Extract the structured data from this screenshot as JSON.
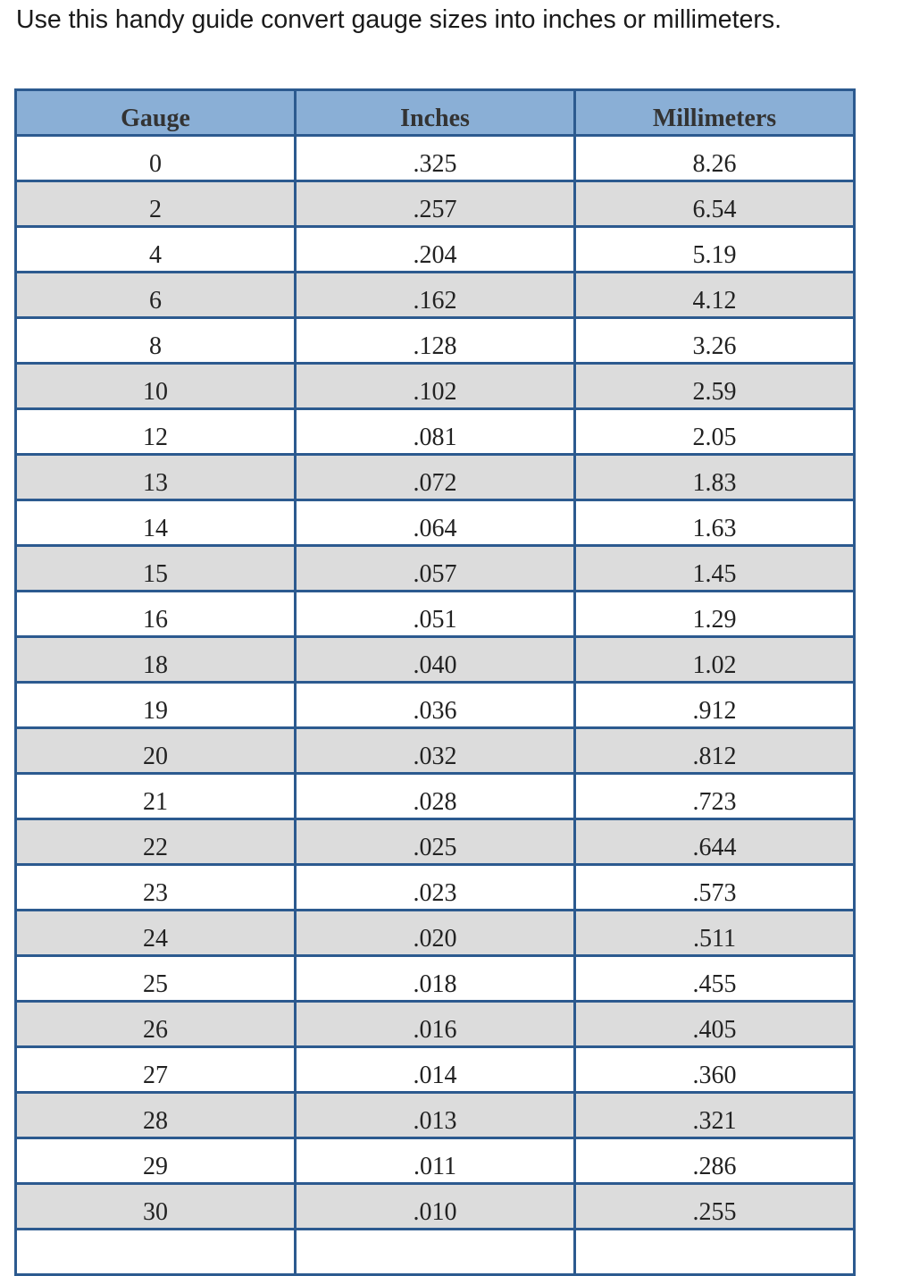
{
  "intro": "Use this handy guide convert gauge sizes into inches or millimeters.",
  "table": {
    "headers": [
      "Gauge",
      "Inches",
      "Millimeters"
    ],
    "rows": [
      [
        "0",
        ".325",
        "8.26"
      ],
      [
        "2",
        ".257",
        "6.54"
      ],
      [
        "4",
        ".204",
        "5.19"
      ],
      [
        "6",
        ".162",
        "4.12"
      ],
      [
        "8",
        ".128",
        "3.26"
      ],
      [
        "10",
        ".102",
        "2.59"
      ],
      [
        "12",
        ".081",
        "2.05"
      ],
      [
        "13",
        ".072",
        "1.83"
      ],
      [
        "14",
        ".064",
        "1.63"
      ],
      [
        "15",
        ".057",
        "1.45"
      ],
      [
        "16",
        ".051",
        "1.29"
      ],
      [
        "18",
        ".040",
        "1.02"
      ],
      [
        "19",
        ".036",
        ".912"
      ],
      [
        "20",
        ".032",
        ".812"
      ],
      [
        "21",
        ".028",
        ".723"
      ],
      [
        "22",
        ".025",
        ".644"
      ],
      [
        "23",
        ".023",
        ".573"
      ],
      [
        "24",
        ".020",
        ".511"
      ],
      [
        "25",
        ".018",
        ".455"
      ],
      [
        "26",
        ".016",
        ".405"
      ],
      [
        "27",
        ".014",
        ".360"
      ],
      [
        "28",
        ".013",
        ".321"
      ],
      [
        "29",
        ".011",
        ".286"
      ],
      [
        "30",
        ".010",
        ".255"
      ]
    ]
  },
  "colors": {
    "header_bg": "#8aafd6",
    "border": "#2c5a8f",
    "alt_row": "#dcdcdc"
  }
}
